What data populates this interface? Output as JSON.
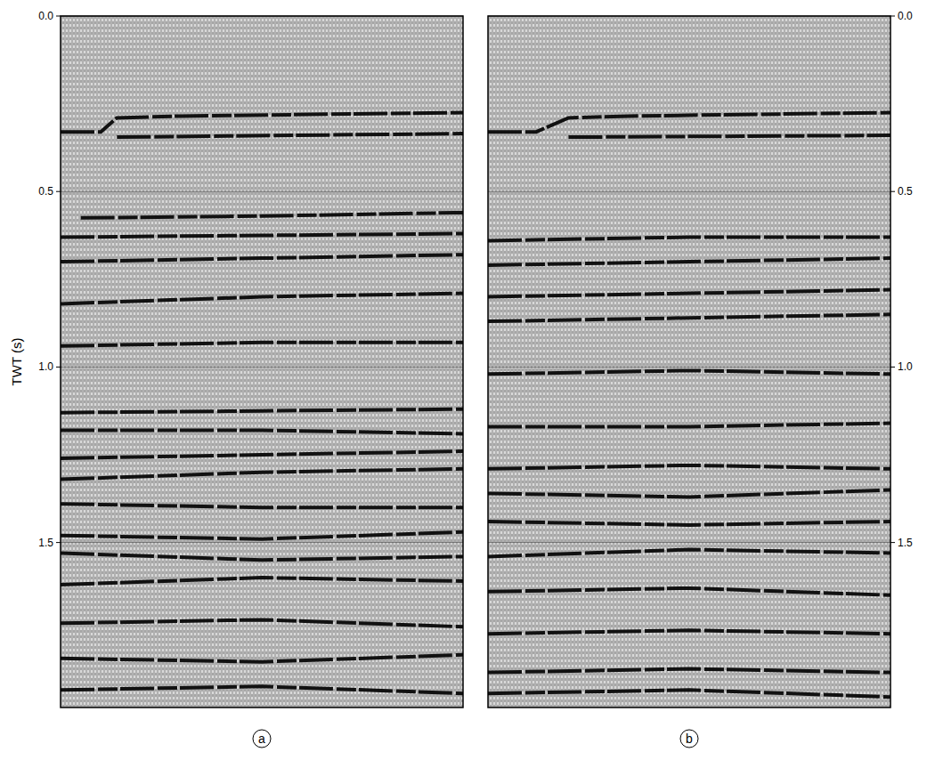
{
  "chart_data": [
    {
      "type": "seismic",
      "title": "a",
      "ylabel": "TWT (s)",
      "color": "#111111",
      "xlim": [
        0,
        1
      ],
      "ylim": [
        0,
        1.97
      ],
      "yticks": [
        {
          "value": 0,
          "label": "0.0"
        },
        0.5,
        {
          "value": 1,
          "label": "1.0"
        },
        1.5
      ],
      "tick_labels": "y",
      "grid": true,
      "series": [
        {
          "x": [
            0,
            0.1,
            0.14,
            0.3,
            1
          ],
          "values": [
            0.33,
            0.33,
            0.29,
            0.285,
            0.275
          ]
        },
        {
          "x": [
            0.14,
            1
          ],
          "values": [
            0.345,
            0.335
          ]
        },
        {
          "x": [
            0.05,
            0.5,
            1
          ],
          "values": [
            0.575,
            0.57,
            0.56
          ]
        },
        {
          "x": [
            0,
            0.5,
            1
          ],
          "values": [
            0.63,
            0.625,
            0.62
          ]
        },
        {
          "x": [
            0,
            0.5,
            1
          ],
          "values": [
            0.7,
            0.69,
            0.68
          ]
        },
        {
          "x": [
            0,
            0.5,
            1
          ],
          "values": [
            0.82,
            0.8,
            0.79
          ]
        },
        {
          "x": [
            0,
            0.5,
            1
          ],
          "values": [
            0.94,
            0.93,
            0.93
          ]
        },
        {
          "x": [
            0,
            0.5,
            1
          ],
          "values": [
            1.13,
            1.125,
            1.12
          ]
        },
        {
          "x": [
            0,
            0.5,
            1
          ],
          "values": [
            1.18,
            1.18,
            1.19
          ]
        },
        {
          "x": [
            0,
            0.5,
            1
          ],
          "values": [
            1.26,
            1.25,
            1.24
          ]
        },
        {
          "x": [
            0,
            0.5,
            1
          ],
          "values": [
            1.32,
            1.3,
            1.29
          ]
        },
        {
          "x": [
            0,
            0.5,
            1
          ],
          "values": [
            1.39,
            1.4,
            1.4
          ]
        },
        {
          "x": [
            0,
            0.5,
            1
          ],
          "values": [
            1.48,
            1.49,
            1.47
          ]
        },
        {
          "x": [
            0,
            0.5,
            1
          ],
          "values": [
            1.53,
            1.55,
            1.54
          ]
        },
        {
          "x": [
            0,
            0.5,
            1
          ],
          "values": [
            1.62,
            1.6,
            1.61
          ]
        },
        {
          "x": [
            0,
            0.5,
            1
          ],
          "values": [
            1.73,
            1.72,
            1.74
          ]
        },
        {
          "x": [
            0,
            0.5,
            1
          ],
          "values": [
            1.83,
            1.84,
            1.82
          ]
        },
        {
          "x": [
            0,
            0.5,
            1
          ],
          "values": [
            1.92,
            1.91,
            1.93
          ]
        }
      ]
    },
    {
      "type": "seismic",
      "title": "b",
      "color": "#111111",
      "xlim": [
        0,
        1
      ],
      "ylim": [
        0,
        1.97
      ],
      "yticks": [
        {
          "value": 0,
          "label": "0.0"
        },
        0.5,
        {
          "value": 1,
          "label": "1.0"
        },
        1.5
      ],
      "tick_labels": "y",
      "grid": true,
      "series": [
        {
          "x": [
            0,
            0.12,
            0.2,
            0.35,
            1
          ],
          "values": [
            0.33,
            0.33,
            0.29,
            0.285,
            0.275
          ]
        },
        {
          "x": [
            0.2,
            1
          ],
          "values": [
            0.345,
            0.34
          ]
        },
        {
          "x": [
            0,
            0.5,
            1
          ],
          "values": [
            0.64,
            0.63,
            0.63
          ]
        },
        {
          "x": [
            0,
            0.5,
            1
          ],
          "values": [
            0.71,
            0.7,
            0.69
          ]
        },
        {
          "x": [
            0,
            0.5,
            1
          ],
          "values": [
            0.8,
            0.79,
            0.78
          ]
        },
        {
          "x": [
            0,
            0.5,
            1
          ],
          "values": [
            0.87,
            0.86,
            0.85
          ]
        },
        {
          "x": [
            0,
            0.5,
            1
          ],
          "values": [
            1.02,
            1.01,
            1.02
          ]
        },
        {
          "x": [
            0,
            0.5,
            1
          ],
          "values": [
            1.17,
            1.17,
            1.16
          ]
        },
        {
          "x": [
            0,
            0.5,
            1
          ],
          "values": [
            1.29,
            1.28,
            1.29
          ]
        },
        {
          "x": [
            0,
            0.5,
            1
          ],
          "values": [
            1.36,
            1.37,
            1.35
          ]
        },
        {
          "x": [
            0,
            0.5,
            1
          ],
          "values": [
            1.44,
            1.45,
            1.44
          ]
        },
        {
          "x": [
            0,
            0.5,
            1
          ],
          "values": [
            1.54,
            1.52,
            1.53
          ]
        },
        {
          "x": [
            0,
            0.5,
            1
          ],
          "values": [
            1.64,
            1.63,
            1.65
          ]
        },
        {
          "x": [
            0,
            0.5,
            1
          ],
          "values": [
            1.76,
            1.75,
            1.76
          ]
        },
        {
          "x": [
            0,
            0.5,
            1
          ],
          "values": [
            1.87,
            1.86,
            1.87
          ]
        },
        {
          "x": [
            0,
            0.5,
            1
          ],
          "values": [
            1.93,
            1.92,
            1.94
          ]
        }
      ]
    }
  ]
}
